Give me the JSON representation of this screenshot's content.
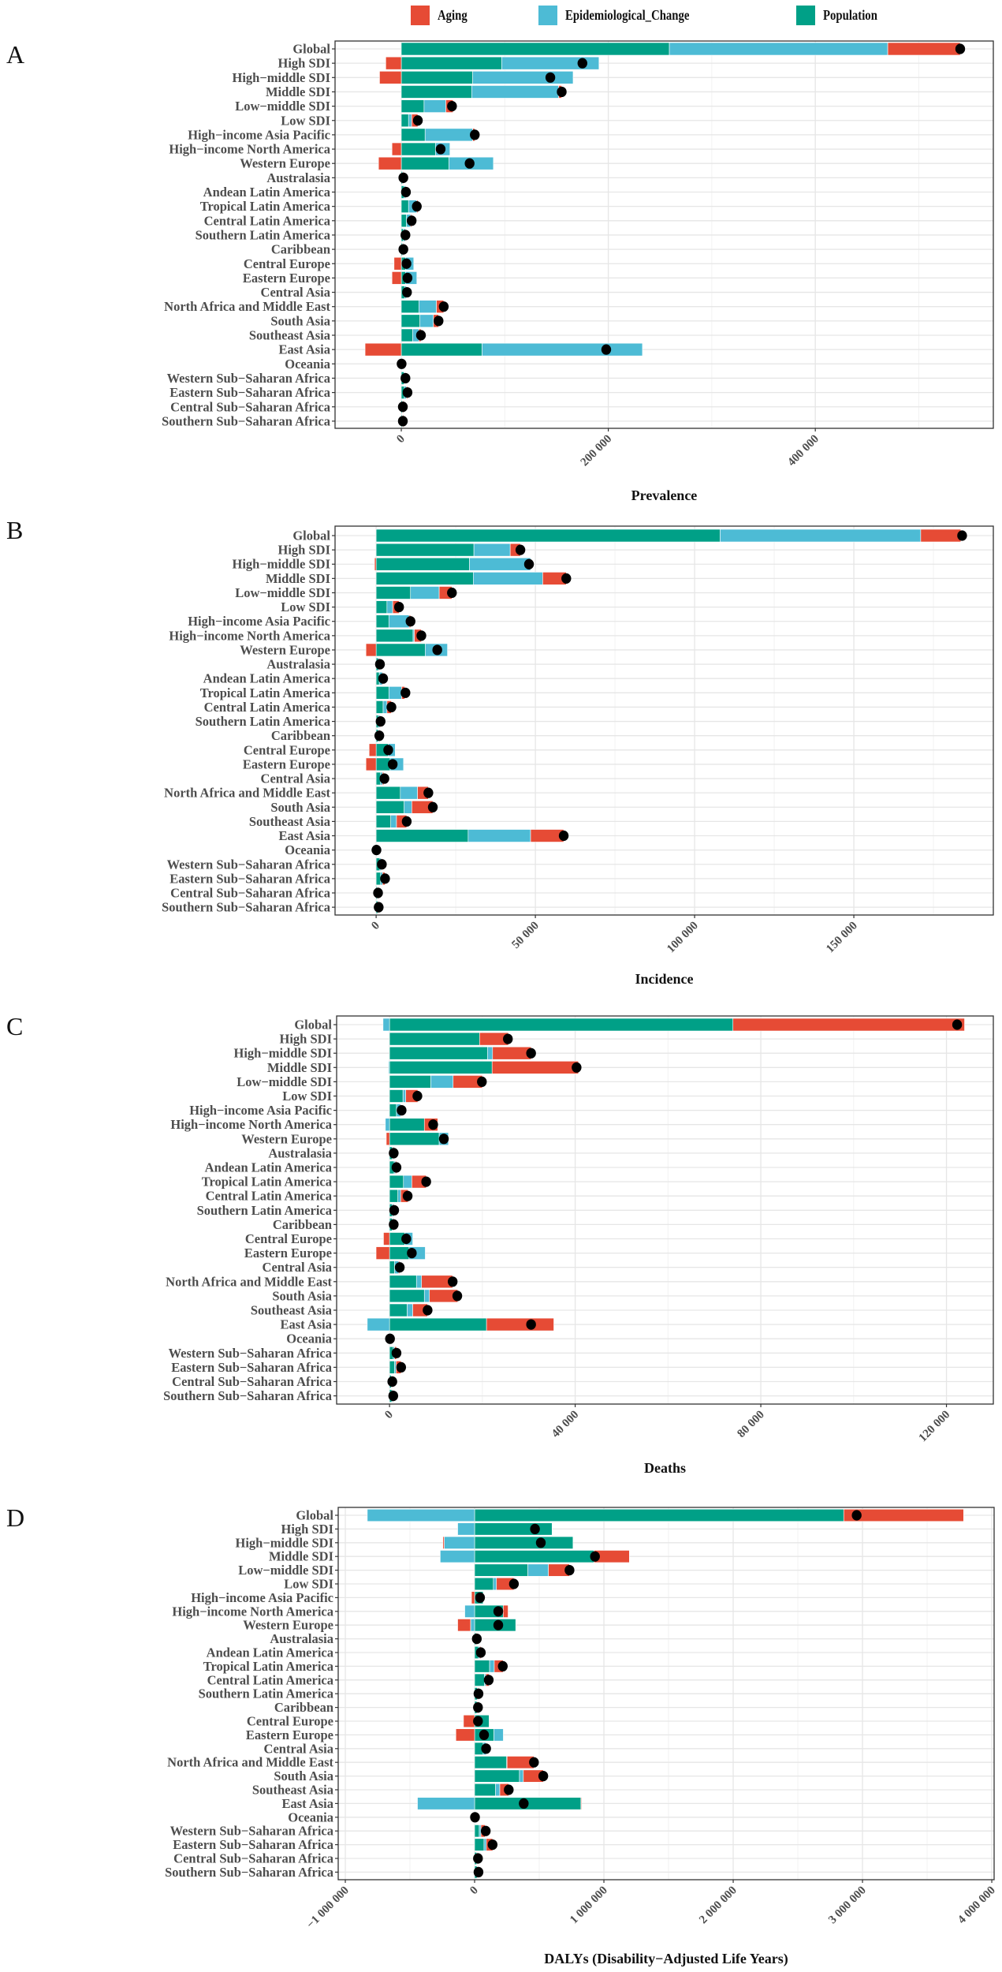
{
  "legend": {
    "items": [
      {
        "label": "Aging",
        "color": "#E64B35"
      },
      {
        "label": "Epidemiological_Change",
        "color": "#4DBBD5"
      },
      {
        "label": "Population",
        "color": "#00A087"
      }
    ]
  },
  "total_marker": {
    "shape": "dot",
    "color": "#000000"
  },
  "chart_data": [
    {
      "panel": "A",
      "type": "bar",
      "orientation": "horizontal",
      "stacked": true,
      "xlabel": "Prevalence",
      "ylabel": "",
      "xlim": [
        -64000,
        572000
      ],
      "xticks": [
        0,
        200000,
        400000
      ],
      "xtick_labels": [
        "0",
        "200 000",
        "400 000"
      ],
      "minor_gridlines": [
        100000,
        300000,
        500000
      ],
      "grid": true,
      "categories": [
        "Global",
        "High SDI",
        "High−middle SDI",
        "Middle SDI",
        "Low−middle SDI",
        "Low SDI",
        "High−income Asia Pacific",
        "High−income North America",
        "Western Europe",
        "Australasia",
        "Andean Latin America",
        "Tropical Latin America",
        "Central Latin America",
        "Southern Latin America",
        "Caribbean",
        "Central Europe",
        "Eastern Europe",
        "Central Asia",
        "North Africa and Middle East",
        "South Asia",
        "Southeast Asia",
        "East Asia",
        "Oceania",
        "Western Sub−Saharan Africa",
        "Eastern Sub−Saharan Africa",
        "Central Sub−Saharan Africa",
        "Southern Sub−Saharan Africa"
      ],
      "series": [
        {
          "name": "Aging",
          "values": [
            70000,
            -15000,
            -21000,
            3000,
            7000,
            6000,
            2000,
            -9000,
            -22000,
            300,
            500,
            1000,
            1000,
            200,
            100,
            -7000,
            -9000,
            500,
            7000,
            5000,
            2000,
            -35000,
            0,
            500,
            1000,
            100,
            100
          ]
        },
        {
          "name": "Epidemiological_Change",
          "values": [
            211000,
            94000,
            97000,
            84000,
            21000,
            3000,
            46000,
            14000,
            43000,
            800,
            1500,
            8000,
            4000,
            1800,
            800,
            8000,
            11000,
            1500,
            17000,
            13000,
            6000,
            155000,
            100,
            1000,
            2000,
            400,
            500
          ]
        },
        {
          "name": "Population",
          "values": [
            259000,
            97000,
            69000,
            68000,
            22000,
            7000,
            23000,
            33000,
            46000,
            1000,
            2500,
            7000,
            5000,
            2000,
            1100,
            4000,
            4000,
            3500,
            17000,
            18000,
            11000,
            78000,
            200,
            2500,
            3000,
            1000,
            900
          ]
        }
      ],
      "overall_difference": [
        540000,
        175000,
        144000,
        155000,
        49000,
        16000,
        71000,
        38000,
        66000,
        2000,
        4500,
        15000,
        10000,
        4000,
        2000,
        5000,
        6000,
        5500,
        41000,
        36000,
        19000,
        198000,
        300,
        4000,
        6000,
        1500,
        1500
      ]
    },
    {
      "panel": "B",
      "type": "bar",
      "orientation": "horizontal",
      "stacked": true,
      "xlabel": "Incidence",
      "ylabel": "",
      "xlim": [
        -12900,
        193800
      ],
      "xticks": [
        0,
        50000,
        100000,
        150000
      ],
      "xtick_labels": [
        "0",
        "50 000",
        "100 000",
        "150 000"
      ],
      "minor_gridlines": [
        25000,
        75000,
        125000,
        175000
      ],
      "grid": true,
      "categories": [
        "Global",
        "High SDI",
        "High−middle SDI",
        "Middle SDI",
        "Low−middle SDI",
        "Low SDI",
        "High−income Asia Pacific",
        "High−income North America",
        "Western Europe",
        "Australasia",
        "Andean Latin America",
        "Tropical Latin America",
        "Central Latin America",
        "Southern Latin America",
        "Caribbean",
        "Central Europe",
        "Eastern Europe",
        "Central Asia",
        "North Africa and Middle East",
        "South Asia",
        "Southeast Asia",
        "East Asia",
        "Oceania",
        "Western Sub−Saharan Africa",
        "Eastern Sub−Saharan Africa",
        "Central Sub−Saharan Africa",
        "Southern Sub−Saharan Africa"
      ],
      "series": [
        {
          "name": "Aging",
          "values": [
            12600,
            3200,
            -500,
            7400,
            4000,
            2000,
            400,
            2200,
            -3200,
            200,
            200,
            1000,
            1400,
            200,
            100,
            -2200,
            -3200,
            400,
            3400,
            6600,
            3200,
            10400,
            0,
            200,
            800,
            100,
            100
          ]
        },
        {
          "name": "Epidemiological_Change",
          "values": [
            63000,
            11400,
            19200,
            21800,
            9000,
            1800,
            6400,
            400,
            7000,
            300,
            1000,
            4000,
            1200,
            500,
            300,
            2200,
            4200,
            600,
            5400,
            2400,
            1800,
            19600,
            0,
            400,
            600,
            200,
            200
          ]
        },
        {
          "name": "Population",
          "values": [
            108000,
            30700,
            29300,
            30500,
            10800,
            3400,
            4000,
            11600,
            15400,
            700,
            1000,
            4000,
            2200,
            700,
            600,
            3800,
            4400,
            1400,
            7600,
            8800,
            4600,
            28900,
            100,
            1200,
            1400,
            300,
            500
          ]
        }
      ],
      "overall_difference": [
        184000,
        45300,
        48000,
        59700,
        23800,
        7200,
        10800,
        14200,
        19200,
        1200,
        2200,
        9200,
        4800,
        1400,
        1000,
        3800,
        5200,
        2600,
        16400,
        17800,
        9600,
        58900,
        100,
        1800,
        2800,
        600,
        800
      ]
    },
    {
      "panel": "C",
      "type": "bar",
      "orientation": "horizontal",
      "stacked": true,
      "xlabel": "Deaths",
      "ylabel": "",
      "xlim": [
        -11400,
        130100
      ],
      "xticks": [
        0,
        40000,
        80000,
        120000
      ],
      "xtick_labels": [
        "0",
        "40 000",
        "80 000",
        "120 000"
      ],
      "minor_gridlines": [
        20000,
        60000,
        100000
      ],
      "grid": true,
      "categories": [
        "Global",
        "High SDI",
        "High−middle SDI",
        "Middle SDI",
        "Low−middle SDI",
        "Low SDI",
        "High−income Asia Pacific",
        "High−income North America",
        "Western Europe",
        "Australasia",
        "Andean Latin America",
        "Tropical Latin America",
        "Central Latin America",
        "Southern Latin America",
        "Caribbean",
        "Central Europe",
        "Eastern Europe",
        "Central Asia",
        "North Africa and Middle East",
        "South Asia",
        "Southeast Asia",
        "East Asia",
        "Oceania",
        "Western Sub−Saharan Africa",
        "Eastern Sub−Saharan Africa",
        "Central Sub−Saharan Africa",
        "Southern Sub−Saharan Africa"
      ],
      "series": [
        {
          "name": "Aging",
          "values": [
            49900,
            6200,
            8300,
            18600,
            6300,
            2600,
            100,
            2900,
            -700,
            100,
            200,
            3100,
            1600,
            100,
            100,
            -1300,
            -2900,
            200,
            6700,
            6100,
            3200,
            14500,
            0,
            400,
            1100,
            100,
            100
          ]
        },
        {
          "name": "Epidemiological_Change",
          "values": [
            -1400,
            0,
            1100,
            -200,
            4800,
            600,
            900,
            -900,
            2000,
            200,
            300,
            1800,
            600,
            300,
            200,
            1700,
            3500,
            900,
            1100,
            1100,
            1200,
            -4800,
            0,
            300,
            300,
            100,
            200
          ]
        },
        {
          "name": "Population",
          "values": [
            74000,
            19400,
            21100,
            22100,
            8900,
            2900,
            1500,
            7500,
            10700,
            600,
            1000,
            3000,
            1800,
            600,
            600,
            3300,
            4200,
            1100,
            5800,
            7500,
            3800,
            20900,
            100,
            800,
            1100,
            400,
            500
          ]
        }
      ],
      "overall_difference": [
        122300,
        25500,
        30500,
        40300,
        19900,
        6000,
        2600,
        9400,
        11700,
        900,
        1500,
        7900,
        3900,
        1000,
        900,
        3600,
        4800,
        2200,
        13600,
        14600,
        8200,
        30500,
        100,
        1500,
        2500,
        600,
        800
      ]
    },
    {
      "panel": "D",
      "type": "bar",
      "orientation": "horizontal",
      "stacked": true,
      "xlabel": "DALYs (Disability−Adjusted Life Years)",
      "ylabel": "",
      "xlim": [
        -1055000,
        4018000
      ],
      "xticks": [
        -1000000,
        0,
        1000000,
        2000000,
        3000000,
        4000000
      ],
      "xtick_labels": [
        "−1 000 000",
        "0",
        "1 000 000",
        "2 000 000",
        "3 000 000",
        "4 000 000"
      ],
      "minor_gridlines": [
        -500000,
        500000,
        1500000,
        2500000,
        3500000
      ],
      "grid": true,
      "categories": [
        "Global",
        "High SDI",
        "High−middle SDI",
        "Middle SDI",
        "Low−middle SDI",
        "Low SDI",
        "High−income Asia Pacific",
        "High−income North America",
        "Western Europe",
        "Australasia",
        "Andean Latin America",
        "Tropical Latin America",
        "Central Latin America",
        "Southern Latin America",
        "Caribbean",
        "Central Europe",
        "Eastern Europe",
        "Central Asia",
        "North Africa and Middle East",
        "South Asia",
        "Southeast Asia",
        "East Asia",
        "Oceania",
        "Western Sub−Saharan Africa",
        "Eastern Sub−Saharan Africa",
        "Central Sub−Saharan Africa",
        "Southern Sub−Saharan Africa"
      ],
      "series": [
        {
          "name": "Aging",
          "values": [
            927000,
            0,
            -10000,
            273000,
            163000,
            135000,
            -24000,
            38000,
            -100000,
            3000,
            8000,
            69000,
            26000,
            4000,
            3000,
            -86000,
            -145000,
            0,
            208000,
            155000,
            69000,
            3000,
            0,
            33000,
            50000,
            4000,
            5000
          ]
        },
        {
          "name": "Epidemiological_Change",
          "values": [
            -830000,
            -131000,
            -235000,
            -266000,
            159000,
            24000,
            0,
            -76000,
            -31000,
            4000,
            10000,
            36000,
            10000,
            6000,
            5000,
            0,
            73000,
            23000,
            3000,
            30000,
            33000,
            -442000,
            -2000,
            13000,
            17000,
            6000,
            6000
          ]
        },
        {
          "name": "Population",
          "values": [
            2855000,
            599000,
            761000,
            924000,
            412000,
            145000,
            66000,
            221000,
            318000,
            10000,
            30000,
            116000,
            76000,
            20000,
            18000,
            112000,
            149000,
            66000,
            248000,
            347000,
            162000,
            822000,
            5000,
            36000,
            73000,
            16000,
            19000
          ]
        }
      ],
      "overall_difference": [
        2955000,
        467000,
        512000,
        931000,
        734000,
        304000,
        42000,
        183000,
        183000,
        17000,
        48000,
        218000,
        109000,
        30000,
        26000,
        26000,
        73000,
        89000,
        459000,
        531000,
        264000,
        380000,
        3000,
        86000,
        139000,
        26000,
        30000
      ]
    }
  ]
}
